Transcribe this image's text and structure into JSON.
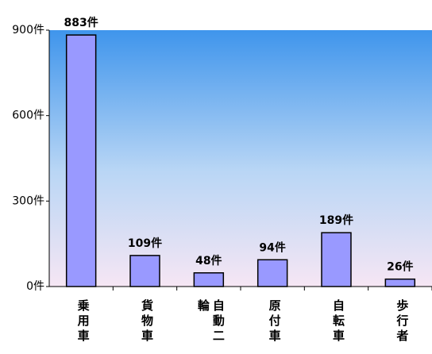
{
  "chart_data": {
    "type": "bar",
    "categories": [
      "乗用車",
      "貨物車",
      "自動二輪",
      "原付車",
      "自転車",
      "歩行者"
    ],
    "values": [
      883,
      109,
      48,
      94,
      189,
      26
    ],
    "value_labels": [
      "883件",
      "109件",
      "48件",
      "94件",
      "189件",
      "26件"
    ],
    "color": "#9999ff",
    "ylim": [
      0,
      900
    ],
    "yticks": [
      {
        "value": 0,
        "label": "0件"
      },
      {
        "value": 300,
        "label": "300件"
      },
      {
        "value": 600,
        "label": "600件"
      },
      {
        "value": 900,
        "label": "900件"
      }
    ]
  }
}
